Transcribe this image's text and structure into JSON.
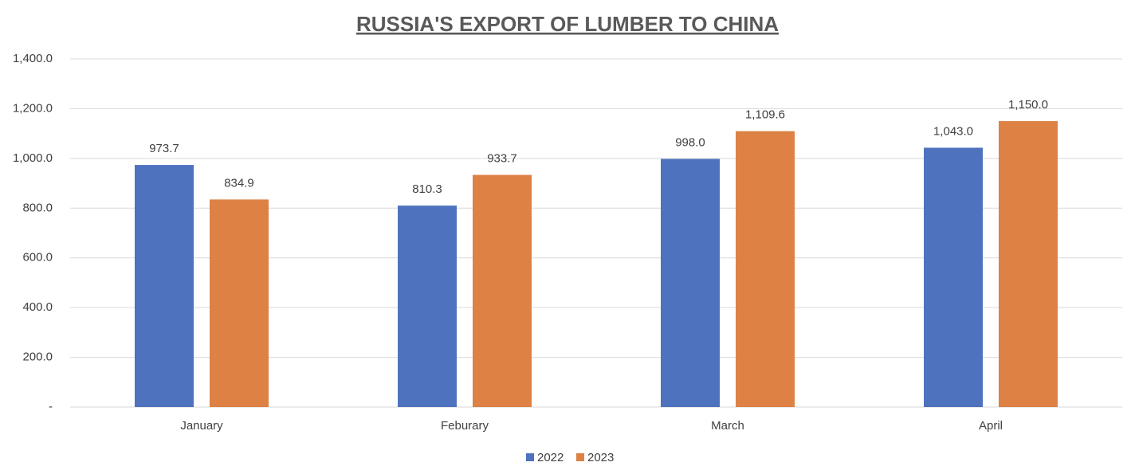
{
  "chart_data": {
    "type": "bar",
    "title": "RUSSIA'S EXPORT OF LUMBER TO CHINA",
    "categories": [
      "January",
      "Feburary",
      "March",
      "April"
    ],
    "series": [
      {
        "name": "2022",
        "color": "#4e72be",
        "values": [
          973.7,
          810.3,
          998.0,
          1043.0
        ],
        "value_labels": [
          "973.7",
          "810.3",
          "998.0",
          "1,043.0"
        ]
      },
      {
        "name": "2023",
        "color": "#dd8244",
        "values": [
          834.9,
          933.7,
          1109.6,
          1150.0
        ],
        "value_labels": [
          "834.9",
          "933.7",
          "1,109.6",
          "1,150.0"
        ]
      }
    ],
    "ylim": [
      0,
      1400
    ],
    "yticks": [
      {
        "value": 0,
        "label": "-"
      },
      {
        "value": 200,
        "label": "200.0"
      },
      {
        "value": 400,
        "label": "400.0"
      },
      {
        "value": 600,
        "label": "600.0"
      },
      {
        "value": 800,
        "label": "800.0"
      },
      {
        "value": 1000,
        "label": "1,000.0"
      },
      {
        "value": 1200,
        "label": "1,200.0"
      },
      {
        "value": 1400,
        "label": "1,400.0"
      }
    ],
    "grid": true,
    "legend": "bottom"
  }
}
